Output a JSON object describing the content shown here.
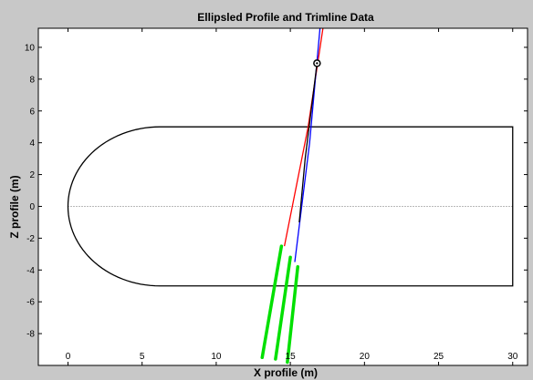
{
  "colors": {
    "figure_bg": "#c8c8c8",
    "axes_bg": "#ffffff",
    "profile": "#000000",
    "red_line": "#ff0000",
    "blue_line": "#0000ff",
    "black_line": "#000000",
    "trimline": "#00e000",
    "marker": "#000000"
  },
  "chart_data": {
    "type": "line",
    "title": "Ellipsled Profile and Trimline Data",
    "xlabel": "X profile (m)",
    "ylabel": "Z profile (m)",
    "xlim": [
      -2,
      31
    ],
    "ylim": [
      -10,
      11.2
    ],
    "xticks": [
      0,
      5,
      10,
      15,
      20,
      25,
      30
    ],
    "yticks": [
      -8,
      -6,
      -4,
      -2,
      0,
      2,
      4,
      6,
      8,
      10
    ],
    "grid": false,
    "legend": "none",
    "profile": {
      "ellipse_center": [
        6.2,
        0
      ],
      "semi_axis_x": 6.2,
      "semi_axis_z": 5,
      "rect_x": [
        6.2,
        30
      ],
      "rect_z": [
        -5,
        5
      ]
    },
    "centerline": {
      "z": 0,
      "x": [
        0,
        30
      ],
      "style": "dotted"
    },
    "series": [
      {
        "color": "red",
        "x": [
          17.2,
          16.2,
          14.6
        ],
        "y": [
          11.2,
          5.0,
          -2.5
        ]
      },
      {
        "color": "blue",
        "x": [
          17.0,
          16.3,
          15.3
        ],
        "y": [
          11.2,
          4.0,
          -3.5
        ]
      },
      {
        "color": "black",
        "x": [
          16.8,
          16.0,
          15.6
        ],
        "y": [
          9.0,
          3.0,
          -1.0
        ]
      }
    ],
    "trimlines": [
      {
        "color": "green",
        "x": [
          14.4,
          13.1
        ],
        "y": [
          -2.5,
          -9.5
        ]
      },
      {
        "color": "green",
        "x": [
          15.0,
          14.0
        ],
        "y": [
          -3.2,
          -9.6
        ]
      },
      {
        "color": "green",
        "x": [
          15.5,
          14.8
        ],
        "y": [
          -3.8,
          -9.8
        ]
      }
    ],
    "marker_point": [
      16.8,
      9.0
    ]
  }
}
